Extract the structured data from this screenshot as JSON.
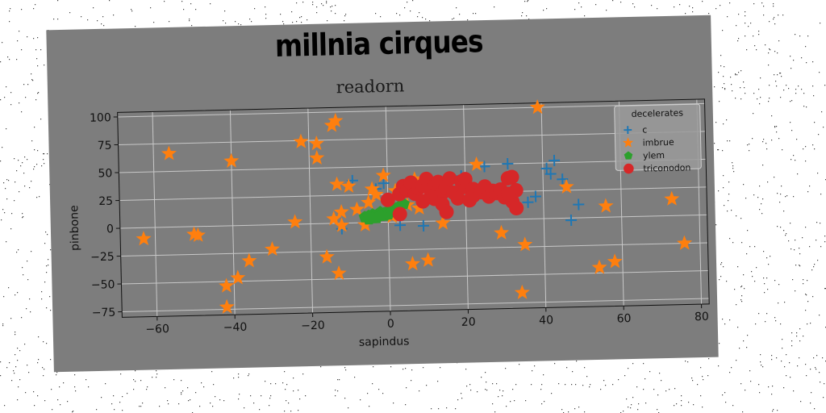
{
  "suptitle": "millnia cirques",
  "chart_data": {
    "type": "scatter",
    "title": "readorn",
    "xlabel": "sapindus",
    "ylabel": "pinbone",
    "xlim": [
      -69,
      82
    ],
    "ylim": [
      -80,
      104
    ],
    "xticks": [
      -60,
      -40,
      -20,
      0,
      20,
      40,
      60,
      80
    ],
    "yticks": [
      -75,
      -50,
      -25,
      0,
      25,
      50,
      75,
      100
    ],
    "xtick_labels": [
      "−60",
      "−40",
      "−20",
      "0",
      "20",
      "40",
      "60",
      "80"
    ],
    "ytick_labels": [
      "−75",
      "−50",
      "−25",
      "0",
      "25",
      "50",
      "75",
      "100"
    ],
    "grid": true,
    "legend": {
      "title": "decelerates",
      "placement": "top-right"
    },
    "series": [
      {
        "name": "c",
        "marker": "plus",
        "color": "#1f77b4",
        "points": [
          [
            -12,
            -5
          ],
          [
            -9,
            38
          ],
          [
            -3,
            30
          ],
          [
            -1,
            35
          ],
          [
            3,
            -3
          ],
          [
            9,
            -4
          ],
          [
            19,
            40
          ],
          [
            25,
            48
          ],
          [
            31,
            50
          ],
          [
            36,
            15
          ],
          [
            41,
            45
          ],
          [
            43,
            52
          ],
          [
            45,
            35
          ],
          [
            47,
            -2
          ],
          [
            49,
            12
          ],
          [
            42,
            40
          ],
          [
            38,
            20
          ],
          [
            15,
            10
          ]
        ]
      },
      {
        "name": "imbrue",
        "marker": "star",
        "color": "#ff7f0e",
        "points": [
          [
            -63,
            -10
          ],
          [
            -56,
            66
          ],
          [
            -50,
            -7
          ],
          [
            -49,
            -8
          ],
          [
            -42,
            -73
          ],
          [
            -42,
            -54
          ],
          [
            -39,
            -47
          ],
          [
            -40,
            58
          ],
          [
            -36,
            -32
          ],
          [
            -30,
            -22
          ],
          [
            -24,
            2
          ],
          [
            -22,
            74
          ],
          [
            -18,
            72
          ],
          [
            -18,
            59
          ],
          [
            -16,
            -30
          ],
          [
            -14,
            4
          ],
          [
            -14,
            88
          ],
          [
            -13,
            92
          ],
          [
            -13,
            -45
          ],
          [
            -13,
            35
          ],
          [
            -12,
            10
          ],
          [
            -12,
            -2
          ],
          [
            -10,
            33
          ],
          [
            -8,
            12
          ],
          [
            -5,
            18
          ],
          [
            -4,
            30
          ],
          [
            -3,
            25
          ],
          [
            -1,
            42
          ],
          [
            2,
            28
          ],
          [
            5,
            15
          ],
          [
            6,
            -38
          ],
          [
            7,
            38
          ],
          [
            8,
            12
          ],
          [
            10,
            -35
          ],
          [
            14,
            -2
          ],
          [
            23,
            50
          ],
          [
            29,
            -12
          ],
          [
            34,
            -66
          ],
          [
            35,
            -23
          ],
          [
            39,
            100
          ],
          [
            46,
            28
          ],
          [
            54,
            -45
          ],
          [
            56,
            10
          ],
          [
            58,
            -40
          ],
          [
            73,
            15
          ],
          [
            76,
            -25
          ],
          [
            1,
            5
          ],
          [
            -6,
            -2
          ]
        ]
      },
      {
        "name": "ylem",
        "marker": "pentagon",
        "color": "#2ca02c",
        "points": [
          [
            -6,
            5
          ],
          [
            -5,
            3
          ],
          [
            -4,
            7
          ],
          [
            -3,
            6
          ],
          [
            -2,
            9
          ],
          [
            -1,
            8
          ],
          [
            0,
            10
          ],
          [
            1,
            11
          ],
          [
            2,
            12
          ],
          [
            3,
            14
          ],
          [
            4,
            16
          ],
          [
            -5,
            6
          ],
          [
            -3,
            4
          ],
          [
            -1,
            6
          ],
          [
            0,
            7
          ],
          [
            -4,
            4
          ],
          [
            2,
            9
          ],
          [
            1,
            9
          ],
          [
            -2,
            6
          ],
          [
            3,
            11
          ]
        ]
      },
      {
        "name": "triconodon",
        "marker": "circle",
        "color": "#d62728",
        "points": [
          [
            0,
            20
          ],
          [
            3,
            25
          ],
          [
            3,
            7
          ],
          [
            4,
            32
          ],
          [
            5,
            28
          ],
          [
            6,
            35
          ],
          [
            7,
            25
          ],
          [
            8,
            30
          ],
          [
            9,
            32
          ],
          [
            10,
            38
          ],
          [
            11,
            28
          ],
          [
            12,
            32
          ],
          [
            12,
            20
          ],
          [
            13,
            35
          ],
          [
            14,
            25
          ],
          [
            15,
            30
          ],
          [
            14,
            15
          ],
          [
            16,
            38
          ],
          [
            17,
            25
          ],
          [
            18,
            20
          ],
          [
            19,
            35
          ],
          [
            20,
            30
          ],
          [
            20,
            37
          ],
          [
            21,
            18
          ],
          [
            22,
            28
          ],
          [
            22,
            22
          ],
          [
            24,
            25
          ],
          [
            25,
            30
          ],
          [
            26,
            21
          ],
          [
            27,
            26
          ],
          [
            28,
            24
          ],
          [
            29,
            27
          ],
          [
            30,
            20
          ],
          [
            31,
            37
          ],
          [
            32,
            38
          ],
          [
            32,
            16
          ],
          [
            33,
            26
          ],
          [
            33,
            10
          ],
          [
            31,
            23
          ],
          [
            15,
            8
          ],
          [
            11,
            22
          ],
          [
            9,
            18
          ]
        ]
      }
    ]
  }
}
